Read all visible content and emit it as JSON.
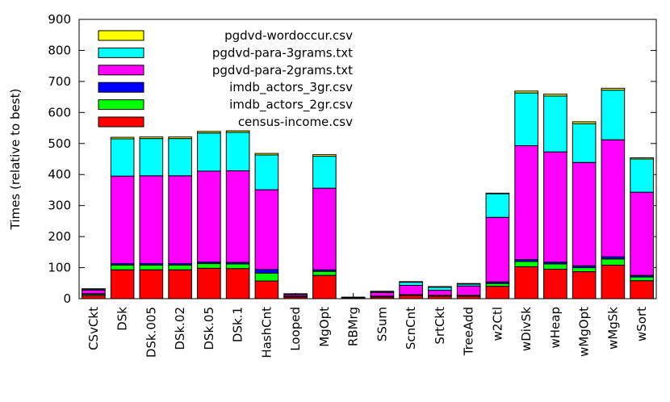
{
  "chart_data": {
    "type": "bar",
    "stacked": true,
    "ylabel": "Times (relative to best)",
    "xlabel": "",
    "title": "",
    "ylim": [
      0,
      900
    ],
    "yticks": [
      0,
      100,
      200,
      300,
      400,
      500,
      600,
      700,
      800,
      900
    ],
    "legend_position": "top-left",
    "categories": [
      "CSvCkt",
      "DSk",
      "DSk.005",
      "DSk.02",
      "DSk.05",
      "DSk.1",
      "HashCnt",
      "Looped",
      "MgOpt",
      "RBMrg",
      "SSum",
      "ScnCnt",
      "SrtCkt",
      "TreeAdd",
      "w2Ctl",
      "wDivSk",
      "wHeap",
      "wMgOpt",
      "wMgSk",
      "wSort"
    ],
    "series": [
      {
        "name": "census-income.csv",
        "color": "#ff0000",
        "values": [
          10,
          93,
          93,
          93,
          98,
          97,
          57,
          5,
          75,
          2,
          5,
          10,
          8,
          8,
          40,
          103,
          95,
          87,
          108,
          58
        ]
      },
      {
        "name": "imdb_actors_2gr.csv",
        "color": "#00ff00",
        "values": [
          4,
          15,
          15,
          15,
          15,
          15,
          25,
          2,
          13,
          1,
          2,
          2,
          2,
          2,
          9,
          17,
          17,
          13,
          20,
          12
        ]
      },
      {
        "name": "imdb_actors_3gr.csv",
        "color": "#0000ff",
        "values": [
          2,
          5,
          5,
          5,
          5,
          5,
          12,
          1,
          5,
          1,
          1,
          1,
          1,
          1,
          5,
          6,
          6,
          6,
          7,
          5
        ]
      },
      {
        "name": "pgdvd-para-2grams.txt",
        "color": "#ff00ff",
        "values": [
          12,
          282,
          283,
          283,
          293,
          295,
          257,
          5,
          263,
          1,
          12,
          30,
          16,
          30,
          208,
          367,
          355,
          333,
          377,
          268
        ]
      },
      {
        "name": "pgdvd-para-3grams.txt",
        "color": "#00ffff",
        "values": [
          3,
          120,
          120,
          120,
          123,
          124,
          112,
          2,
          103,
          0,
          3,
          10,
          10,
          6,
          76,
          170,
          180,
          125,
          160,
          107
        ]
      },
      {
        "name": "pgdvd-wordoccur.csv",
        "color": "#ffff00",
        "values": [
          1,
          5,
          5,
          5,
          5,
          5,
          5,
          1,
          5,
          0,
          1,
          2,
          2,
          2,
          2,
          6,
          6,
          6,
          6,
          4
        ]
      }
    ]
  }
}
